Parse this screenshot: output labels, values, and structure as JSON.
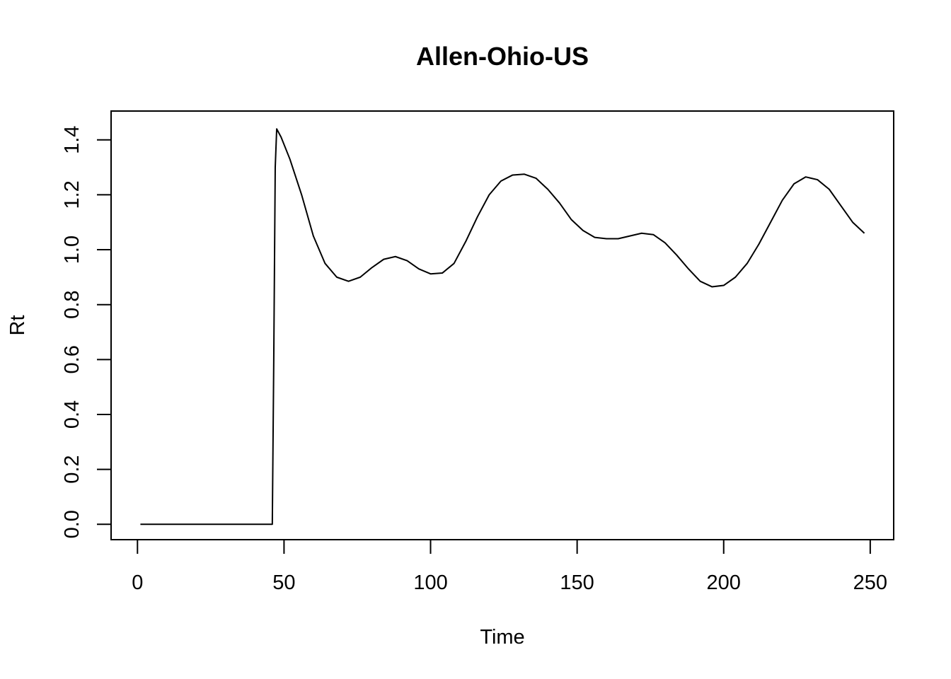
{
  "chart_data": {
    "type": "line",
    "title": "Allen-Ohio-US",
    "xlabel": "Time",
    "ylabel": "Rt",
    "xlim": [
      -9,
      258
    ],
    "ylim": [
      -0.056,
      1.505
    ],
    "xticks": [
      0,
      50,
      100,
      150,
      200,
      250
    ],
    "yticks": [
      0.0,
      0.2,
      0.4,
      0.6,
      0.8,
      1.0,
      1.2,
      1.4
    ],
    "ytick_labels": [
      "0.0",
      "0.2",
      "0.4",
      "0.6",
      "0.8",
      "1.0",
      "1.2",
      "1.4"
    ],
    "grid": false,
    "line_color": "#000000",
    "series": [
      {
        "x": [
          1,
          10,
          20,
          30,
          40,
          46,
          46.5,
          47,
          47.5,
          49,
          52,
          56,
          60,
          64,
          68,
          72,
          76,
          80,
          84,
          88,
          92,
          96,
          100,
          104,
          108,
          112,
          116,
          120,
          124,
          128,
          132,
          136,
          140,
          144,
          148,
          152,
          156,
          160,
          164,
          168,
          172,
          176,
          180,
          184,
          188,
          192,
          196,
          200,
          204,
          208,
          212,
          216,
          220,
          224,
          228,
          232,
          236,
          240,
          244,
          248
        ],
        "values": [
          0,
          0,
          0,
          0,
          0,
          0,
          0.6,
          1.3,
          1.44,
          1.41,
          1.33,
          1.2,
          1.05,
          0.95,
          0.9,
          0.885,
          0.9,
          0.935,
          0.965,
          0.975,
          0.96,
          0.93,
          0.912,
          0.915,
          0.95,
          1.03,
          1.12,
          1.2,
          1.25,
          1.272,
          1.275,
          1.26,
          1.22,
          1.17,
          1.11,
          1.07,
          1.045,
          1.04,
          1.04,
          1.05,
          1.06,
          1.055,
          1.025,
          0.98,
          0.93,
          0.885,
          0.865,
          0.87,
          0.9,
          0.95,
          1.02,
          1.1,
          1.18,
          1.24,
          1.265,
          1.255,
          1.22,
          1.16,
          1.1,
          1.06
        ]
      }
    ]
  }
}
